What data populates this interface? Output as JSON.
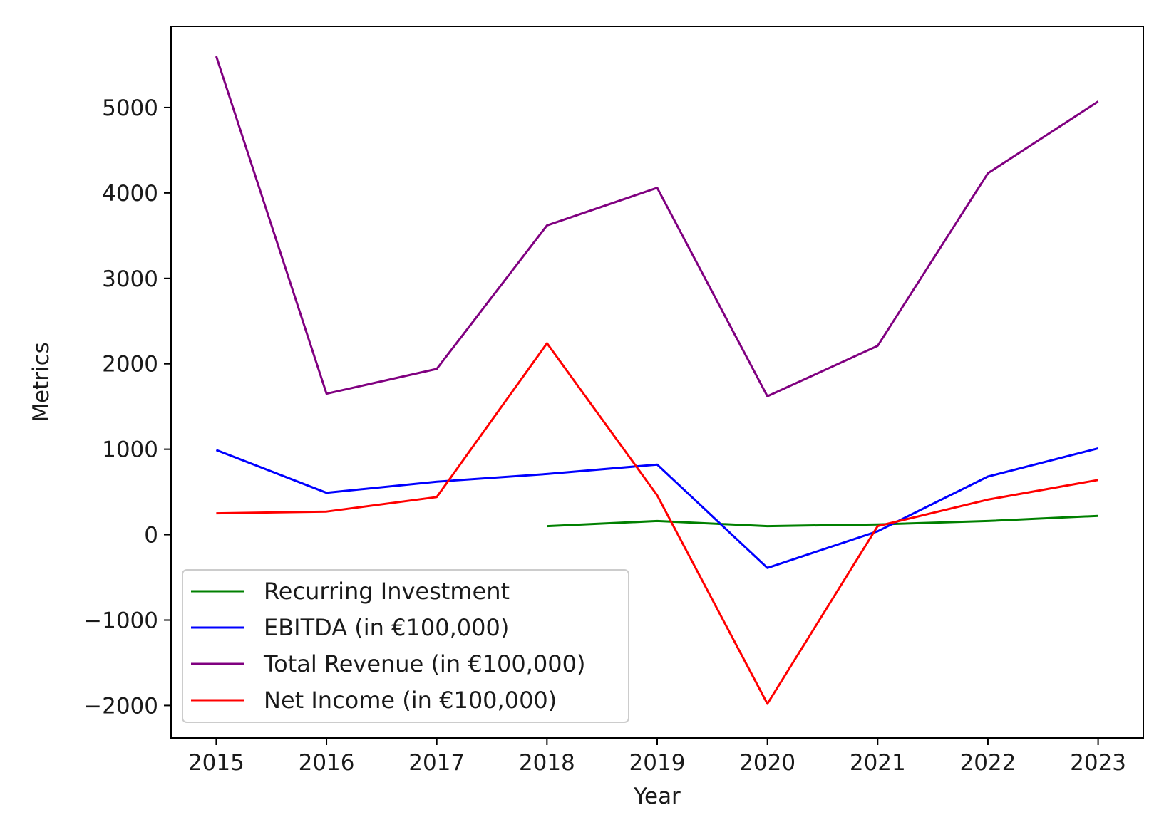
{
  "chart_data": {
    "type": "line",
    "xlabel": "Year",
    "ylabel": "Metrics",
    "x": [
      2015,
      2016,
      2017,
      2018,
      2019,
      2020,
      2021,
      2022,
      2023
    ],
    "xticks": [
      "2015",
      "2016",
      "2017",
      "2018",
      "2019",
      "2020",
      "2021",
      "2022",
      "2023"
    ],
    "yticks": [
      {
        "value": -2000,
        "label": "−2000"
      },
      {
        "value": -1000,
        "label": "−1000"
      },
      {
        "value": 0,
        "label": "0"
      },
      {
        "value": 1000,
        "label": "1000"
      },
      {
        "value": 2000,
        "label": "2000"
      },
      {
        "value": 3000,
        "label": "3000"
      },
      {
        "value": 4000,
        "label": "4000"
      },
      {
        "value": 5000,
        "label": "5000"
      }
    ],
    "xlim": [
      2014.59,
      2023.41
    ],
    "ylim": [
      -2380,
      5950
    ],
    "grid": false,
    "legend_position": "lower-left",
    "series": [
      {
        "name": "Recurring Investment",
        "color": "#008000",
        "values": [
          null,
          null,
          null,
          100,
          160,
          100,
          120,
          160,
          220
        ]
      },
      {
        "name": "EBITDA (in €100,000)",
        "color": "#0000ff",
        "values": [
          990,
          490,
          620,
          710,
          820,
          -390,
          40,
          680,
          1010
        ]
      },
      {
        "name": "Total Revenue (in €100,000)",
        "color": "#800080",
        "values": [
          5600,
          1650,
          1940,
          3620,
          4060,
          1620,
          2210,
          4230,
          5070
        ]
      },
      {
        "name": "Net Income (in €100,000)",
        "color": "#ff0000",
        "values": [
          250,
          270,
          440,
          2240,
          460,
          -1980,
          100,
          410,
          640
        ]
      }
    ]
  }
}
